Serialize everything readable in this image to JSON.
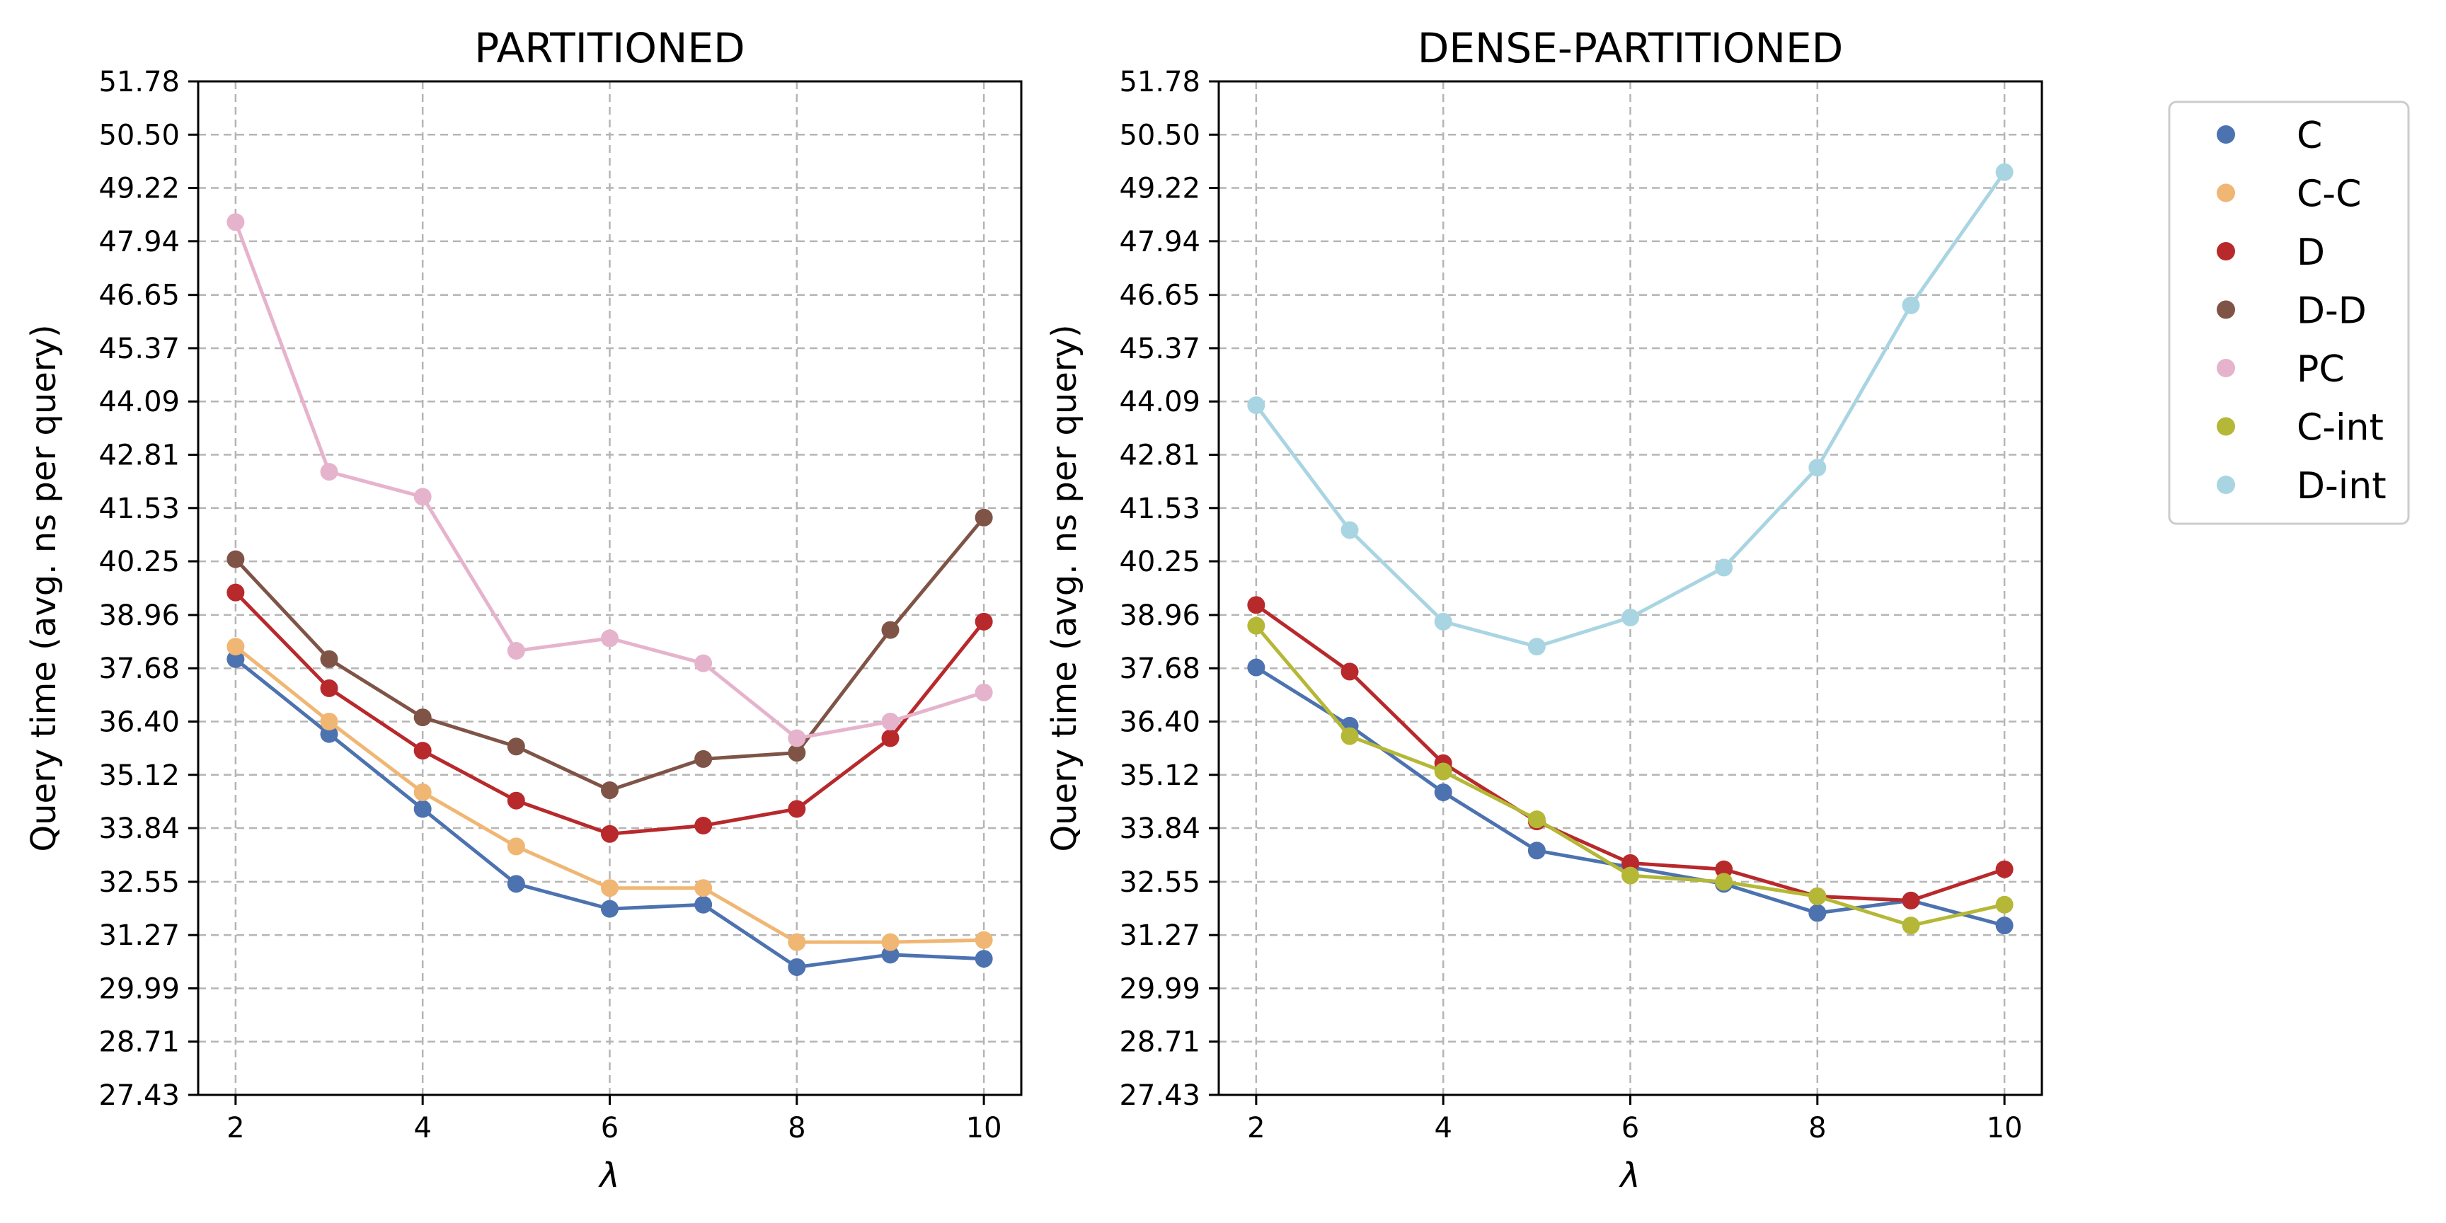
{
  "colors": {
    "C": "#4c72b0",
    "C-C": "#f0b673",
    "D": "#b8292c",
    "D-D": "#7f5447",
    "PC": "#e6b3cd",
    "C-int": "#b5b836",
    "D-int": "#a9d5e2",
    "grid": "#b5b5b5",
    "axis": "#000000"
  },
  "legend": {
    "placement": "outside-right",
    "entries": [
      "C",
      "C-C",
      "D",
      "D-D",
      "PC",
      "C-int",
      "D-int"
    ]
  },
  "chart_data": [
    {
      "type": "line",
      "title": "PARTITIONED",
      "xlabel": "λ",
      "ylabel": "Query time (avg. ns per query)",
      "xlim": [
        1.6,
        10.4
      ],
      "ylim": [
        27.43,
        51.78
      ],
      "xticks": [
        "2",
        "4",
        "6",
        "8",
        "10"
      ],
      "yticks": [
        "27.43",
        "28.71",
        "29.99",
        "31.27",
        "32.55",
        "33.84",
        "35.12",
        "36.40",
        "37.68",
        "38.96",
        "40.25",
        "41.53",
        "42.81",
        "44.09",
        "45.37",
        "46.65",
        "47.94",
        "49.22",
        "50.50",
        "51.78"
      ],
      "grid": true,
      "x": [
        2,
        3,
        4,
        5,
        6,
        7,
        8,
        9,
        10
      ],
      "series": [
        {
          "name": "C",
          "values": [
            37.9,
            36.1,
            34.3,
            32.5,
            31.9,
            32.0,
            30.5,
            30.8,
            30.7
          ]
        },
        {
          "name": "C-C",
          "values": [
            38.2,
            36.4,
            34.7,
            33.4,
            32.4,
            32.4,
            31.1,
            31.1,
            31.15
          ]
        },
        {
          "name": "D",
          "values": [
            39.5,
            37.2,
            35.7,
            34.5,
            33.7,
            33.9,
            34.3,
            36.0,
            38.8
          ]
        },
        {
          "name": "D-D",
          "values": [
            40.3,
            37.9,
            36.5,
            35.8,
            34.75,
            35.5,
            35.65,
            38.6,
            41.3
          ]
        },
        {
          "name": "PC",
          "values": [
            48.4,
            42.4,
            41.8,
            38.1,
            38.4,
            37.8,
            36.0,
            36.4,
            37.1
          ]
        }
      ]
    },
    {
      "type": "line",
      "title": "DENSE-PARTITIONED",
      "xlabel": "λ",
      "ylabel": "Query time (avg. ns per query)",
      "xlim": [
        1.6,
        10.4
      ],
      "ylim": [
        27.43,
        51.78
      ],
      "xticks": [
        "2",
        "4",
        "6",
        "8",
        "10"
      ],
      "yticks": [
        "27.43",
        "28.71",
        "29.99",
        "31.27",
        "32.55",
        "33.84",
        "35.12",
        "36.40",
        "37.68",
        "38.96",
        "40.25",
        "41.53",
        "42.81",
        "44.09",
        "45.37",
        "46.65",
        "47.94",
        "49.22",
        "50.50",
        "51.78"
      ],
      "grid": true,
      "x": [
        2,
        3,
        4,
        5,
        6,
        7,
        8,
        9,
        10
      ],
      "series": [
        {
          "name": "C",
          "values": [
            37.7,
            36.3,
            34.7,
            33.3,
            32.9,
            32.5,
            31.8,
            32.1,
            31.5
          ]
        },
        {
          "name": "D",
          "values": [
            39.2,
            37.6,
            35.4,
            34.0,
            33.0,
            32.85,
            32.2,
            32.1,
            32.85
          ]
        },
        {
          "name": "C-int",
          "values": [
            38.7,
            36.05,
            35.2,
            34.05,
            32.7,
            32.55,
            32.2,
            31.5,
            32.0
          ]
        },
        {
          "name": "D-int",
          "values": [
            44.0,
            41.0,
            38.8,
            38.2,
            38.9,
            40.1,
            42.5,
            46.4,
            49.6
          ]
        }
      ]
    }
  ]
}
